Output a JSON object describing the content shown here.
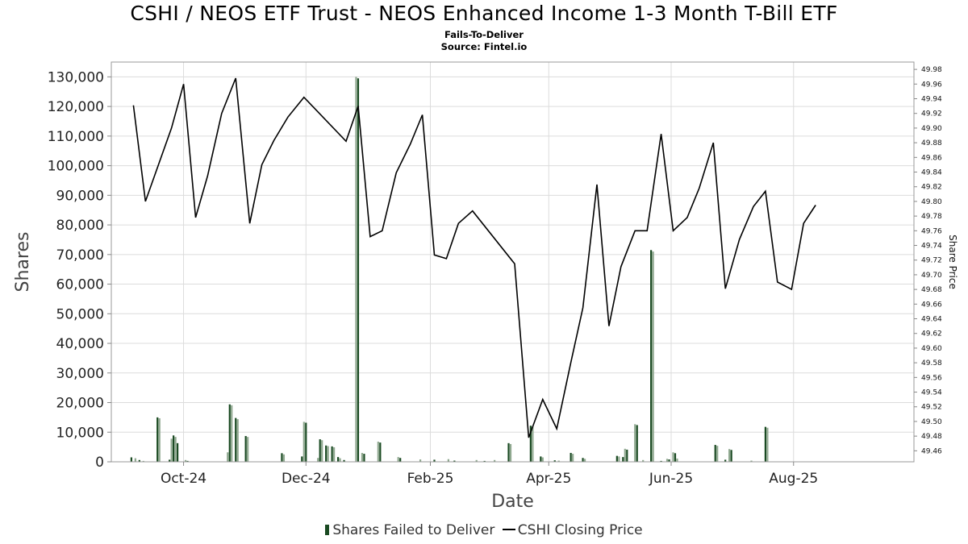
{
  "header": {
    "title": "CSHI / NEOS ETF Trust - NEOS Enhanced Income 1-3 Month T-Bill ETF",
    "subtitle1": "Fails-To-Deliver",
    "subtitle2": "Source: Fintel.io"
  },
  "colors": {
    "bar_primary": "#1a4a22",
    "bar_secondary": "#8fa88f",
    "line": "#000000",
    "grid": "#dcdcdc"
  },
  "chart_data": {
    "type": "bar",
    "title": "CSHI / NEOS ETF Trust - NEOS Enhanced Income 1-3 Month T-Bill ETF",
    "subtitle": "Fails-To-Deliver",
    "xlabel": "Date",
    "ylabel": "Shares",
    "y2label": "Share Price",
    "xlim": [
      "2024-08-26",
      "2025-09-30"
    ],
    "ylim": [
      0,
      135000
    ],
    "y2lim": [
      49.445,
      49.99
    ],
    "x_ticks": [
      {
        "date": "2024-10-01",
        "label": "Oct-24"
      },
      {
        "date": "2024-12-01",
        "label": "Dec-24"
      },
      {
        "date": "2025-02-01",
        "label": "Feb-25"
      },
      {
        "date": "2025-04-01",
        "label": "Apr-25"
      },
      {
        "date": "2025-06-01",
        "label": "Jun-25"
      },
      {
        "date": "2025-08-01",
        "label": "Aug-25"
      }
    ],
    "y_ticks": [
      0,
      10000,
      20000,
      30000,
      40000,
      50000,
      60000,
      70000,
      80000,
      90000,
      100000,
      110000,
      120000,
      130000
    ],
    "y_tick_labels": [
      "0",
      "10,000",
      "20,000",
      "30,000",
      "40,000",
      "50,000",
      "60,000",
      "70,000",
      "80,000",
      "90,000",
      "100,000",
      "110,000",
      "120,000",
      "130,000"
    ],
    "y2_tick_labels": [
      "49.46",
      "49.48",
      "49.50",
      "49.52",
      "49.54",
      "49.56",
      "49.58",
      "49.60",
      "49.62",
      "49.64",
      "49.66",
      "49.68",
      "49.70",
      "49.72",
      "49.74",
      "49.76",
      "49.78",
      "49.80",
      "49.82",
      "49.84",
      "49.86",
      "49.88",
      "49.90",
      "49.92",
      "49.94",
      "49.96",
      "49.98"
    ],
    "grid": true,
    "legend_position": "bottom",
    "series": [
      {
        "name": "Shares Failed to Deliver",
        "type": "bar",
        "points": [
          [
            "2024-09-05",
            1500
          ],
          [
            "2024-09-07",
            1200
          ],
          [
            "2024-09-09",
            600
          ],
          [
            "2024-09-11",
            300
          ],
          [
            "2024-09-18",
            15000
          ],
          [
            "2024-09-19",
            14700
          ],
          [
            "2024-09-24",
            700
          ],
          [
            "2024-09-25",
            7800
          ],
          [
            "2024-09-26",
            8900
          ],
          [
            "2024-09-27",
            8400
          ],
          [
            "2024-09-28",
            6300
          ],
          [
            "2024-10-02",
            600
          ],
          [
            "2024-10-03",
            300
          ],
          [
            "2024-10-23",
            3200
          ],
          [
            "2024-10-24",
            19400
          ],
          [
            "2024-10-25",
            19100
          ],
          [
            "2024-10-27",
            14800
          ],
          [
            "2024-10-28",
            14400
          ],
          [
            "2024-11-01",
            8700
          ],
          [
            "2024-11-02",
            8400
          ],
          [
            "2024-11-19",
            2900
          ],
          [
            "2024-11-20",
            2500
          ],
          [
            "2024-11-29",
            1800
          ],
          [
            "2024-11-30",
            13500
          ],
          [
            "2024-12-01",
            13200
          ],
          [
            "2024-12-07",
            1300
          ],
          [
            "2024-12-08",
            7600
          ],
          [
            "2024-12-09",
            7300
          ],
          [
            "2024-12-11",
            5500
          ],
          [
            "2024-12-12",
            5300
          ],
          [
            "2024-12-14",
            5200
          ],
          [
            "2024-12-15",
            4900
          ],
          [
            "2024-12-17",
            1600
          ],
          [
            "2024-12-18",
            1200
          ],
          [
            "2024-12-20",
            600
          ],
          [
            "2024-12-26",
            130000
          ],
          [
            "2024-12-27",
            129500
          ],
          [
            "2024-12-29",
            3000
          ],
          [
            "2024-12-30",
            2700
          ],
          [
            "2025-01-06",
            6800
          ],
          [
            "2025-01-07",
            6500
          ],
          [
            "2025-01-16",
            1600
          ],
          [
            "2025-01-17",
            1300
          ],
          [
            "2025-01-27",
            800
          ],
          [
            "2025-02-03",
            700
          ],
          [
            "2025-02-10",
            900
          ],
          [
            "2025-02-13",
            400
          ],
          [
            "2025-02-24",
            600
          ],
          [
            "2025-02-28",
            300
          ],
          [
            "2025-03-05",
            600
          ],
          [
            "2025-03-12",
            6300
          ],
          [
            "2025-03-13",
            6000
          ],
          [
            "2025-03-23",
            12200
          ],
          [
            "2025-03-24",
            11900
          ],
          [
            "2025-03-28",
            1800
          ],
          [
            "2025-03-29",
            1500
          ],
          [
            "2025-04-04",
            500
          ],
          [
            "2025-04-06",
            400
          ],
          [
            "2025-04-12",
            3000
          ],
          [
            "2025-04-13",
            2700
          ],
          [
            "2025-04-18",
            1300
          ],
          [
            "2025-04-19",
            1000
          ],
          [
            "2025-05-05",
            2000
          ],
          [
            "2025-05-06",
            1800
          ],
          [
            "2025-05-08",
            1600
          ],
          [
            "2025-05-09",
            4400
          ],
          [
            "2025-05-10",
            4100
          ],
          [
            "2025-05-14",
            12700
          ],
          [
            "2025-05-15",
            12400
          ],
          [
            "2025-05-18",
            600
          ],
          [
            "2025-05-22",
            71500
          ],
          [
            "2025-05-23",
            71000
          ],
          [
            "2025-05-27",
            300
          ],
          [
            "2025-05-30",
            1000
          ],
          [
            "2025-05-31",
            800
          ],
          [
            "2025-06-02",
            3200
          ],
          [
            "2025-06-03",
            2900
          ],
          [
            "2025-06-04",
            1100
          ],
          [
            "2025-06-23",
            5700
          ],
          [
            "2025-06-24",
            5400
          ],
          [
            "2025-06-28",
            700
          ],
          [
            "2025-06-30",
            4300
          ],
          [
            "2025-07-01",
            4000
          ],
          [
            "2025-07-11",
            400
          ],
          [
            "2025-07-18",
            11800
          ],
          [
            "2025-07-19",
            11500
          ]
        ]
      },
      {
        "name": "CSHI Closing Price",
        "type": "line",
        "points": [
          [
            "2024-09-06",
            49.931
          ],
          [
            "2024-09-12",
            49.8
          ],
          [
            "2024-09-25",
            49.9
          ],
          [
            "2024-10-01",
            49.96
          ],
          [
            "2024-10-07",
            49.778
          ],
          [
            "2024-10-13",
            49.835
          ],
          [
            "2024-10-20",
            49.92
          ],
          [
            "2024-10-27",
            49.968
          ],
          [
            "2024-11-03",
            49.77
          ],
          [
            "2024-11-09",
            49.85
          ],
          [
            "2024-11-15",
            49.883
          ],
          [
            "2024-11-22",
            49.915
          ],
          [
            "2024-11-30",
            49.942
          ],
          [
            "2024-12-21",
            49.882
          ],
          [
            "2024-12-27",
            49.93
          ],
          [
            "2025-01-02",
            49.752
          ],
          [
            "2025-01-08",
            49.76
          ],
          [
            "2025-01-15",
            49.839
          ],
          [
            "2025-01-22",
            49.878
          ],
          [
            "2025-01-28",
            49.918
          ],
          [
            "2025-02-03",
            49.727
          ],
          [
            "2025-02-09",
            49.722
          ],
          [
            "2025-02-15",
            49.77
          ],
          [
            "2025-02-22",
            49.787
          ],
          [
            "2025-03-15",
            49.715
          ],
          [
            "2025-03-22",
            49.478
          ],
          [
            "2025-03-29",
            49.53
          ],
          [
            "2025-04-05",
            49.49
          ],
          [
            "2025-04-12",
            49.58
          ],
          [
            "2025-04-18",
            49.655
          ],
          [
            "2025-04-25",
            49.823
          ],
          [
            "2025-05-01",
            49.63
          ],
          [
            "2025-05-07",
            49.711
          ],
          [
            "2025-05-14",
            49.76
          ],
          [
            "2025-05-20",
            49.76
          ],
          [
            "2025-05-27",
            49.892
          ],
          [
            "2025-06-02",
            49.76
          ],
          [
            "2025-06-09",
            49.778
          ],
          [
            "2025-06-15",
            49.818
          ],
          [
            "2025-06-22",
            49.88
          ],
          [
            "2025-06-28",
            49.681
          ],
          [
            "2025-07-05",
            49.748
          ],
          [
            "2025-07-12",
            49.793
          ],
          [
            "2025-07-18",
            49.814
          ],
          [
            "2025-07-24",
            49.69
          ],
          [
            "2025-07-31",
            49.68
          ],
          [
            "2025-08-06",
            49.77
          ],
          [
            "2025-08-12",
            49.795
          ]
        ]
      }
    ]
  }
}
